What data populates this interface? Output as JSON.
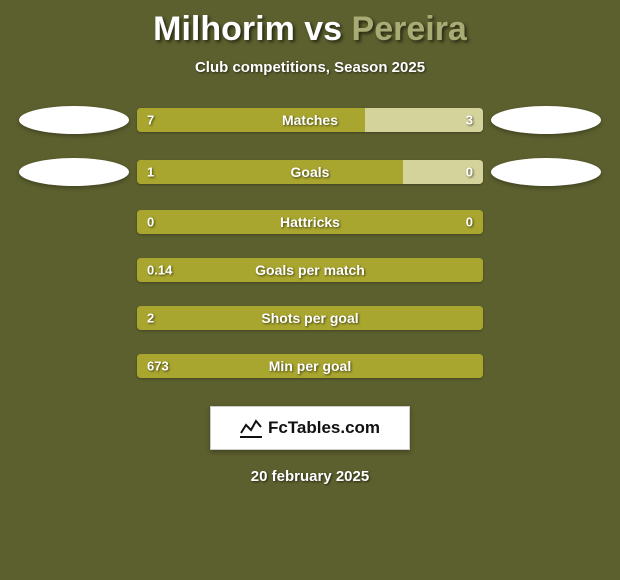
{
  "background_color": "#5c602e",
  "title": {
    "player1": "Milhorim",
    "vs": " vs ",
    "player2": "Pereira",
    "player1_color": "#ffffff",
    "player2_color": "#a9ab74",
    "fontsize": 34
  },
  "subtitle": {
    "text": "Club competitions, Season 2025",
    "fontsize": 15
  },
  "bar_colors": {
    "left": "#a9a62f",
    "right": "#d4d39c",
    "track": "#a9a62f"
  },
  "stats": [
    {
      "label": "Matches",
      "left_val": "7",
      "right_val": "3",
      "left_pct": 66,
      "right_pct": 34,
      "show_ovals": true
    },
    {
      "label": "Goals",
      "left_val": "1",
      "right_val": "0",
      "left_pct": 77,
      "right_pct": 23,
      "show_ovals": true
    },
    {
      "label": "Hattricks",
      "left_val": "0",
      "right_val": "0",
      "left_pct": 100,
      "right_pct": 0,
      "show_ovals": false
    },
    {
      "label": "Goals per match",
      "left_val": "0.14",
      "right_val": "",
      "left_pct": 100,
      "right_pct": 0,
      "show_ovals": false
    },
    {
      "label": "Shots per goal",
      "left_val": "2",
      "right_val": "",
      "left_pct": 100,
      "right_pct": 0,
      "show_ovals": false
    },
    {
      "label": "Min per goal",
      "left_val": "673",
      "right_val": "",
      "left_pct": 100,
      "right_pct": 0,
      "show_ovals": false
    }
  ],
  "oval_color": "#ffffff",
  "logo": {
    "text": "FcTables.com",
    "icon_name": "chart-icon"
  },
  "date": "20 february 2025"
}
